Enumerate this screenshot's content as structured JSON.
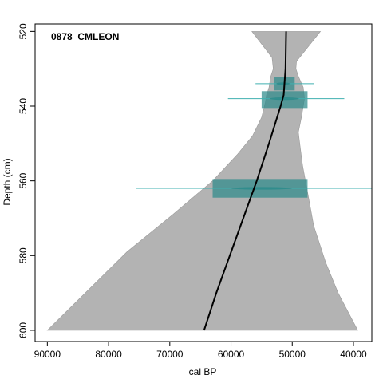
{
  "chart_data": {
    "type": "line",
    "title": "0878_CMLEON",
    "xlabel": "cal BP",
    "ylabel": "Depth (cm)",
    "x_axis_reversed": true,
    "y_axis_reversed": true,
    "xlim": [
      92000,
      37000
    ],
    "ylim": [
      518,
      603
    ],
    "x_ticks": [
      90000,
      80000,
      70000,
      60000,
      50000,
      40000
    ],
    "y_ticks": [
      520,
      540,
      560,
      580,
      600
    ],
    "x_tick_labels": [
      "90000",
      "80000",
      "70000",
      "60000",
      "50000",
      "40000"
    ],
    "y_tick_labels": [
      "520",
      "540",
      "560",
      "580",
      "600"
    ],
    "grid": false,
    "colors": {
      "envelope": "#b3b3b3",
      "median_line": "#000000",
      "date_fill": "#2e8b8b",
      "date_line": "#40b0b0"
    },
    "series": [
      {
        "values": [
          {
            "x": 51000,
            "y": 520
          },
          {
            "x": 51100,
            "y": 530
          },
          {
            "x": 51400,
            "y": 537
          },
          {
            "x": 51900,
            "y": 540
          },
          {
            "x": 53800,
            "y": 550
          },
          {
            "x": 55800,
            "y": 560
          },
          {
            "x": 58000,
            "y": 570
          },
          {
            "x": 60200,
            "y": 580
          },
          {
            "x": 62400,
            "y": 590
          },
          {
            "x": 64400,
            "y": 600
          }
        ]
      }
    ],
    "envelope_upper": [
      {
        "x": 56600,
        "y": 520
      },
      {
        "x": 53300,
        "y": 527
      },
      {
        "x": 53100,
        "y": 530
      },
      {
        "x": 53500,
        "y": 532
      },
      {
        "x": 53800,
        "y": 535
      },
      {
        "x": 54200,
        "y": 537
      },
      {
        "x": 54400,
        "y": 539
      },
      {
        "x": 55000,
        "y": 543
      },
      {
        "x": 56500,
        "y": 548
      },
      {
        "x": 59000,
        "y": 553
      },
      {
        "x": 63000,
        "y": 560
      },
      {
        "x": 69500,
        "y": 569
      },
      {
        "x": 77000,
        "y": 579
      },
      {
        "x": 90000,
        "y": 600
      }
    ],
    "envelope_lower": [
      {
        "x": 45400,
        "y": 520
      },
      {
        "x": 49300,
        "y": 528
      },
      {
        "x": 49400,
        "y": 530
      },
      {
        "x": 49000,
        "y": 532
      },
      {
        "x": 48200,
        "y": 535
      },
      {
        "x": 48000,
        "y": 538
      },
      {
        "x": 48500,
        "y": 543
      },
      {
        "x": 49000,
        "y": 547
      },
      {
        "x": 48700,
        "y": 551
      },
      {
        "x": 48300,
        "y": 556
      },
      {
        "x": 47500,
        "y": 563
      },
      {
        "x": 46500,
        "y": 572
      },
      {
        "x": 44500,
        "y": 582
      },
      {
        "x": 42500,
        "y": 590
      },
      {
        "x": 39300,
        "y": 600
      }
    ],
    "dates": [
      {
        "depth": 534,
        "age": 51500,
        "box_x": [
          53000,
          49600
        ],
        "box_y": [
          532.2,
          535.8
        ],
        "range_x": [
          56000,
          46500
        ]
      },
      {
        "depth": 538,
        "age": 51300,
        "box_x": [
          55000,
          47500
        ],
        "box_y": [
          536,
          540.5
        ],
        "range_x": [
          60500,
          41500
        ]
      },
      {
        "depth": 562,
        "age": 55000,
        "box_x": [
          63000,
          47500
        ],
        "box_y": [
          559.5,
          564.5
        ],
        "range_x": [
          75500,
          37000
        ]
      }
    ]
  }
}
